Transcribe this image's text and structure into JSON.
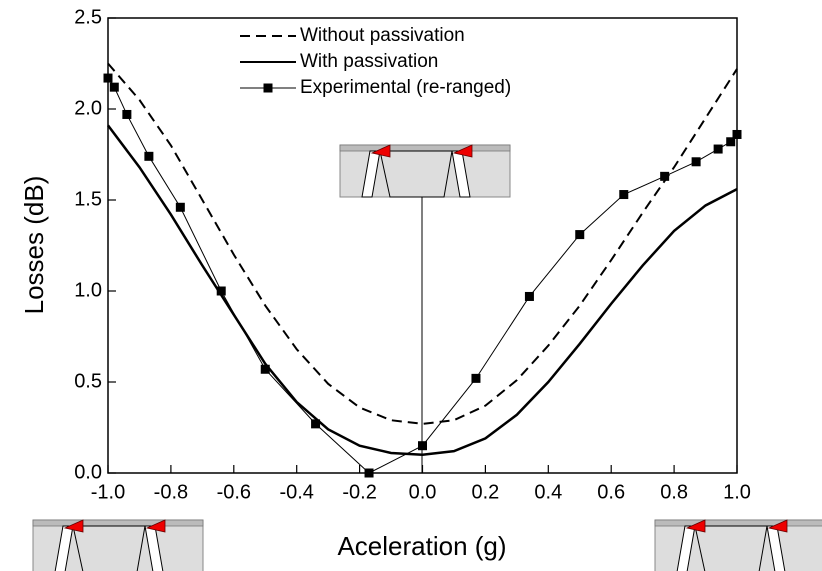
{
  "chart_data": {
    "type": "line",
    "xlabel": "Aceleration (g)",
    "ylabel": "Losses (dB)",
    "xlim": [
      -1.0,
      1.0
    ],
    "ylim": [
      0.0,
      2.5
    ],
    "xticks": [
      {
        "value": -1.0,
        "label": "-1.0"
      },
      {
        "value": -0.8,
        "label": "-0.8"
      },
      {
        "value": -0.6,
        "label": "-0.6"
      },
      {
        "value": -0.4,
        "label": "-0.4"
      },
      {
        "value": -0.2,
        "label": "-0.2"
      },
      {
        "value": 0.0,
        "label": "0.0"
      },
      {
        "value": 0.2,
        "label": "0.2"
      },
      {
        "value": 0.4,
        "label": "0.4"
      },
      {
        "value": 0.6,
        "label": "0.6"
      },
      {
        "value": 0.8,
        "label": "0.8"
      },
      {
        "value": 1.0,
        "label": "1.0"
      }
    ],
    "yticks": [
      {
        "value": 0.0,
        "label": "0.0"
      },
      {
        "value": 0.5,
        "label": "0.5"
      },
      {
        "value": 1.0,
        "label": "1.0"
      },
      {
        "value": 1.5,
        "label": "1.5"
      },
      {
        "value": 2.0,
        "label": "2.0"
      },
      {
        "value": 2.5,
        "label": "2.5"
      }
    ],
    "series": [
      {
        "name": "Without passivation",
        "color": "#000000",
        "style": "dashed",
        "marker": false,
        "x": [
          -1.0,
          -0.9,
          -0.8,
          -0.7,
          -0.6,
          -0.5,
          -0.4,
          -0.3,
          -0.2,
          -0.1,
          0.0,
          0.1,
          0.2,
          0.3,
          0.4,
          0.5,
          0.6,
          0.7,
          0.8,
          0.9,
          1.0
        ],
        "values": [
          2.25,
          2.05,
          1.8,
          1.5,
          1.2,
          0.92,
          0.68,
          0.49,
          0.36,
          0.29,
          0.27,
          0.29,
          0.37,
          0.51,
          0.7,
          0.92,
          1.17,
          1.43,
          1.68,
          1.95,
          2.22
        ]
      },
      {
        "name": "With passivation",
        "color": "#000000",
        "style": "solid",
        "marker": false,
        "x": [
          -1.0,
          -0.9,
          -0.8,
          -0.7,
          -0.6,
          -0.5,
          -0.4,
          -0.3,
          -0.2,
          -0.1,
          0.0,
          0.1,
          0.2,
          0.3,
          0.4,
          0.5,
          0.6,
          0.7,
          0.8,
          0.9,
          1.0
        ],
        "values": [
          1.91,
          1.68,
          1.42,
          1.14,
          0.87,
          0.6,
          0.39,
          0.24,
          0.15,
          0.11,
          0.1,
          0.12,
          0.19,
          0.32,
          0.5,
          0.71,
          0.93,
          1.14,
          1.33,
          1.47,
          1.56
        ]
      },
      {
        "name": "Experimental (re-ranged)",
        "color": "#000000",
        "style": "thin",
        "marker": true,
        "x": [
          -1.0,
          -0.98,
          -0.94,
          -0.87,
          -0.77,
          -0.64,
          -0.5,
          -0.34,
          -0.17,
          0.0,
          0.17,
          0.34,
          0.5,
          0.64,
          0.77,
          0.87,
          0.94,
          0.98,
          1.0
        ],
        "values": [
          2.17,
          2.12,
          1.97,
          1.74,
          1.46,
          1.0,
          0.57,
          0.27,
          0.0,
          0.15,
          0.52,
          0.97,
          1.31,
          1.53,
          1.63,
          1.71,
          1.78,
          1.82,
          1.86
        ]
      }
    ]
  }
}
